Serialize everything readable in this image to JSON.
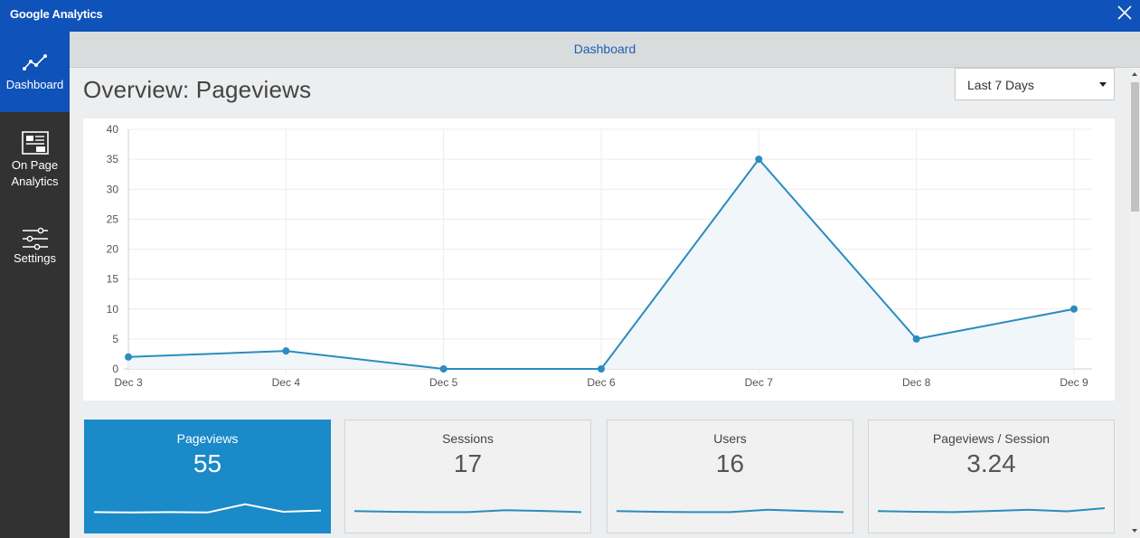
{
  "window": {
    "title": "Google Analytics"
  },
  "sidebar": {
    "items": [
      {
        "label": "Dashboard",
        "icon": "line-chart-icon",
        "active": true
      },
      {
        "label_line1": "On Page",
        "label_line2": "Analytics",
        "icon": "analytics-page-icon",
        "active": false
      },
      {
        "label": "Settings",
        "icon": "sliders-icon",
        "active": false
      }
    ]
  },
  "main": {
    "tab": "Dashboard",
    "title": "Overview: Pageviews",
    "date_range": {
      "selected": "Last 7 Days"
    }
  },
  "chart_data": {
    "type": "area",
    "title": "",
    "xlabel": "",
    "ylabel": "",
    "categories": [
      "Dec 3",
      "Dec 4",
      "Dec 5",
      "Dec 6",
      "Dec 7",
      "Dec 8",
      "Dec 9"
    ],
    "values": [
      2,
      3,
      0,
      0,
      35,
      5,
      10
    ],
    "ylim": [
      0,
      40
    ],
    "yticks": [
      0,
      5,
      10,
      15,
      20,
      25,
      30,
      35,
      40
    ],
    "grid": true,
    "color": "#2b8cbe"
  },
  "stats": [
    {
      "label": "Pageviews",
      "value": "55",
      "active": true,
      "sparkline": [
        0.3,
        0.28,
        0.3,
        0.28,
        0.7,
        0.32,
        0.38
      ]
    },
    {
      "label": "Sessions",
      "value": "17",
      "active": false,
      "sparkline": [
        0.35,
        0.32,
        0.3,
        0.3,
        0.4,
        0.36,
        0.3
      ]
    },
    {
      "label": "Users",
      "value": "16",
      "active": false,
      "sparkline": [
        0.35,
        0.32,
        0.3,
        0.3,
        0.42,
        0.36,
        0.3
      ]
    },
    {
      "label": "Pageviews / Session",
      "value": "3.24",
      "active": false,
      "sparkline": [
        0.35,
        0.32,
        0.3,
        0.36,
        0.42,
        0.34,
        0.5
      ]
    }
  ],
  "colors": {
    "brand": "#0f52ba",
    "sidebar": "#323232",
    "accent": "#1a8ac8",
    "line": "#2b8cbe"
  }
}
